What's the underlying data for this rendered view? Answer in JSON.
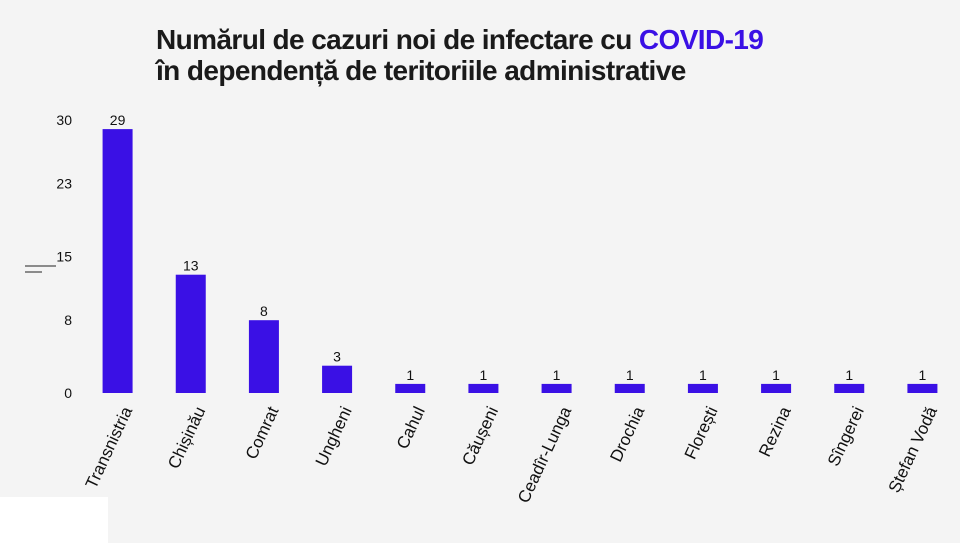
{
  "title": {
    "line1_prefix": "Numărul de cazuri noi de infectare cu ",
    "line1_highlight": "COVID-19",
    "line2": "în dependență de teritoriile administrative"
  },
  "colors": {
    "bar": "#3a10e5",
    "highlight": "#3a10e5",
    "background": "#f4f4f4"
  },
  "chart_data": {
    "type": "bar",
    "title": "Numărul de cazuri noi de infectare cu COVID-19 în dependență de teritoriile administrative",
    "categories": [
      "Transnistria",
      "Chișinău",
      "Comrat",
      "Ungheni",
      "Cahul",
      "Căușeni",
      "Ceadîr-Lunga",
      "Drochia",
      "Florești",
      "Rezina",
      "Sîngerei",
      "Ștefan Vodă"
    ],
    "values": [
      29,
      13,
      8,
      3,
      1,
      1,
      1,
      1,
      1,
      1,
      1,
      1
    ],
    "data_labels": [
      "29",
      "13",
      "8",
      "3",
      "1",
      "1",
      "1",
      "1",
      "1",
      "1",
      "1",
      "1"
    ],
    "yticks": [
      "0",
      "8",
      "15",
      "23",
      "30"
    ],
    "ylim": [
      0,
      30
    ],
    "xlabel": "",
    "ylabel": "",
    "grid": false,
    "legend": "none"
  }
}
